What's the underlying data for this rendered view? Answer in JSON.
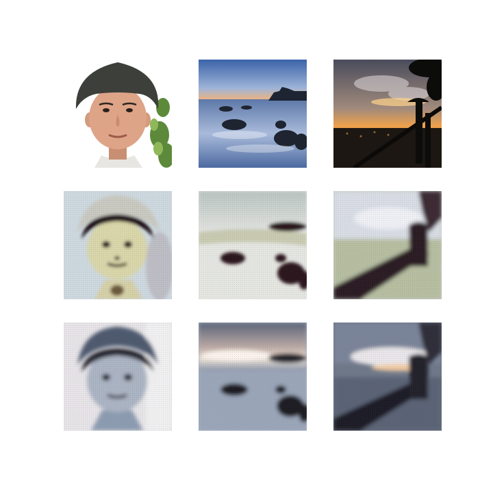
{
  "figure": {
    "rows": [
      {
        "role": "input",
        "tiles": [
          {
            "subject": "portrait-photo"
          },
          {
            "subject": "seascape-rocks-photo"
          },
          {
            "subject": "sunset-cityscape-photo"
          }
        ]
      },
      {
        "role": "generated",
        "tiles": [
          {
            "subject": "portrait-generated-a"
          },
          {
            "subject": "seascape-generated-a"
          },
          {
            "subject": "cityscape-generated-a"
          }
        ]
      },
      {
        "role": "generated",
        "tiles": [
          {
            "subject": "portrait-generated-b"
          },
          {
            "subject": "seascape-generated-b"
          },
          {
            "subject": "cityscape-generated-b"
          }
        ]
      }
    ]
  }
}
